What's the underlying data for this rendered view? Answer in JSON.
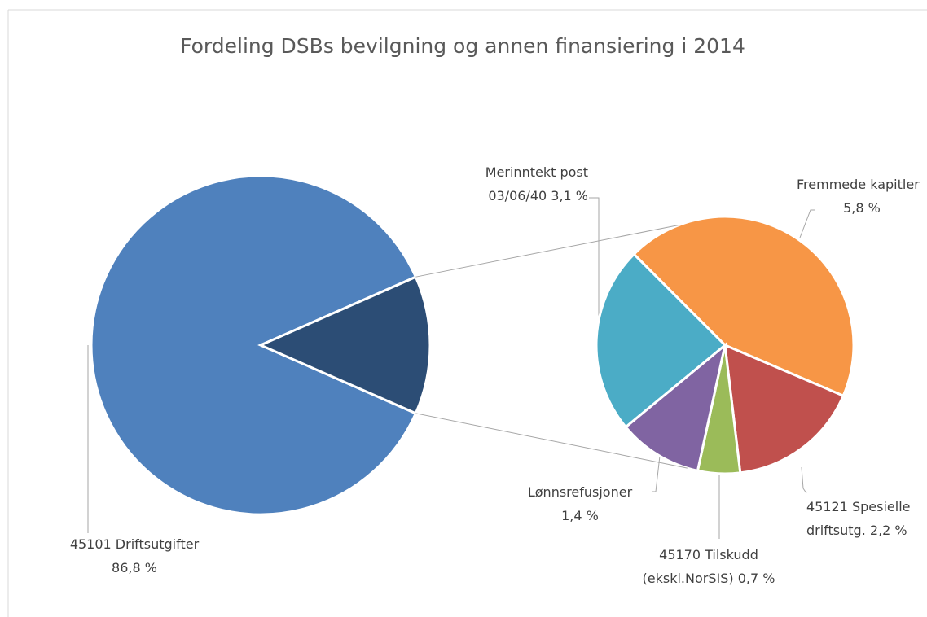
{
  "chart_data": {
    "type": "pie-of-pie",
    "title": "Fordeling DSBs bevilgning og annen finansiering i 2014",
    "categories": [
      "45101 Driftsutgifter",
      "Fremmede kapitler",
      "45121 Spesielle driftsutg.",
      "45170 Tilskudd (ekskl.NorSIS)",
      "Lønnsrefusjoner",
      "Merinntekt post 03/06/40"
    ],
    "values": [
      86.8,
      5.8,
      2.2,
      0.7,
      1.4,
      3.1
    ],
    "value_labels": [
      "86,8 %",
      "5,8 %",
      "2,2 %",
      "0,7 %",
      "1,4 %",
      "3,1 %"
    ],
    "colors": [
      "#4f81bd",
      "#f79646",
      "#c0504d",
      "#9bbb59",
      "#8064a2",
      "#4bacc6"
    ]
  }
}
